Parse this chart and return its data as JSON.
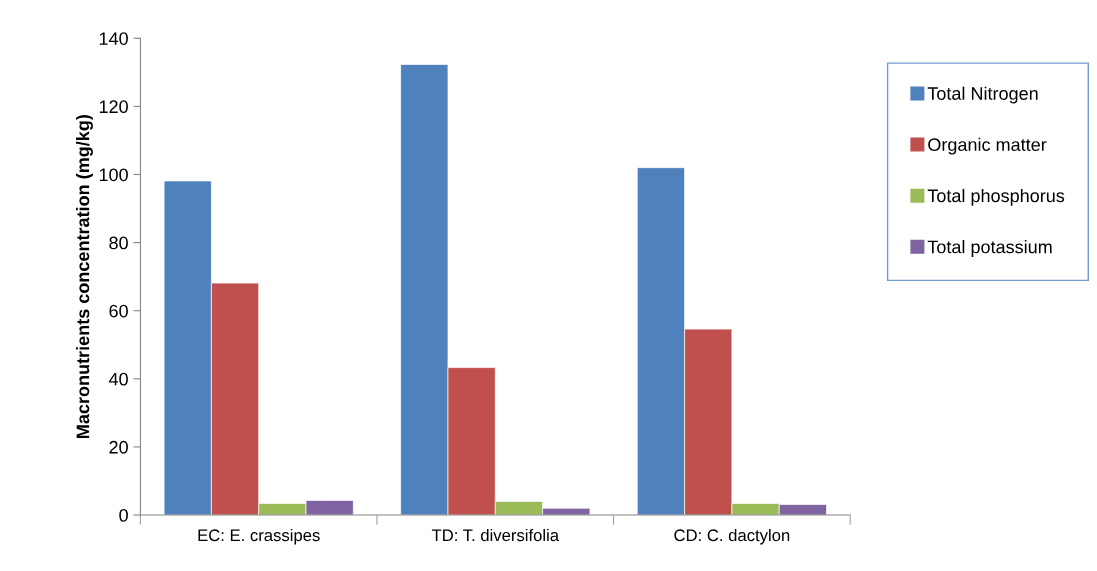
{
  "chart_data": {
    "type": "bar",
    "ylabel": "Macronutrients concentration (mg/kg)",
    "categories": [
      "EC: E. crassipes",
      "TD: T. diversifolia",
      "CD: C. dactylon"
    ],
    "series": [
      {
        "name": "Total Nitrogen",
        "color": "#4f81bd",
        "values": [
          98.1,
          132.3,
          102.0
        ]
      },
      {
        "name": "Organic matter",
        "color": "#c0504d",
        "values": [
          68.1,
          43.3,
          54.6
        ]
      },
      {
        "name": "Total phosphorus",
        "color": "#9bbb59",
        "values": [
          3.4,
          4.0,
          3.4
        ]
      },
      {
        "name": "Total potassium",
        "color": "#8064a2",
        "values": [
          4.3,
          2.0,
          3.1
        ]
      }
    ],
    "ylim": [
      0,
      140
    ],
    "yticks": [
      0,
      20,
      40,
      60,
      80,
      100,
      120,
      140
    ],
    "grid": false,
    "legend": "right"
  }
}
